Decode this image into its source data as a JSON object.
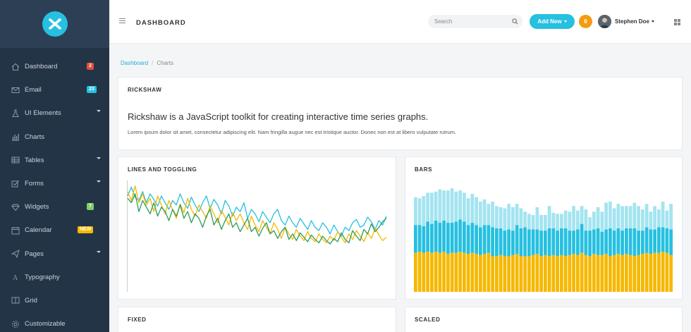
{
  "topbar": {
    "title": "DASHBOARD",
    "search_placeholder": "Search",
    "add_new_label": "Add New",
    "notification_count": "6",
    "user_name": "Stephen Doe"
  },
  "sidebar": {
    "items": [
      {
        "label": "Dashboard",
        "icon": "home-icon",
        "badge": "2",
        "badge_color": "#e74c3c"
      },
      {
        "label": "Email",
        "icon": "envelope-icon",
        "badge": "23",
        "badge_color": "#26c0e0"
      },
      {
        "label": "UI Elements",
        "icon": "flask-icon",
        "caret": true
      },
      {
        "label": "Charts",
        "icon": "bar-chart-icon"
      },
      {
        "label": "Tables",
        "icon": "table-icon",
        "caret": true
      },
      {
        "label": "Forms",
        "icon": "checkbox-icon",
        "caret": true
      },
      {
        "label": "Widgets",
        "icon": "diamond-icon",
        "badge": "7",
        "badge_color": "#7ed069"
      },
      {
        "label": "Calendar",
        "icon": "calendar-icon",
        "badge": "NEW",
        "badge_color": "#f6b800"
      },
      {
        "label": "Pages",
        "icon": "send-icon",
        "caret": true
      },
      {
        "label": "Typography",
        "icon": "font-icon"
      },
      {
        "label": "Grid",
        "icon": "columns-icon"
      },
      {
        "label": "Customizable",
        "icon": "settings-icon"
      }
    ]
  },
  "breadcrumb": {
    "home": "Dashboard",
    "current": "Charts"
  },
  "cards": {
    "rickshaw": {
      "title": "RICKSHAW",
      "lead": "Rickshaw is a JavaScript toolkit for creating interactive time series graphs.",
      "body": "Lorem ipsum dolor sit amet, consectetur adipiscing elit. Nam fringilla augue nec est tristique auctor. Donec non est at libero vulputate rutrum."
    },
    "lines": {
      "title": "LINES AND TOGGLING"
    },
    "bars": {
      "title": "BARS"
    },
    "fixed": {
      "title": "FIXED"
    },
    "scaled": {
      "title": "SCALED"
    }
  },
  "colors": {
    "accent": "#26c0e0",
    "yellow": "#f6b800",
    "green": "#2a9d5c",
    "light_blue": "#a3e4f0"
  },
  "chart_data": [
    {
      "type": "line",
      "title": "LINES AND TOGGLING",
      "ylim": [
        0,
        100
      ],
      "series": [
        {
          "color": "#26c0e0",
          "values": [
            86,
            94,
            85,
            82,
            90,
            80,
            88,
            83,
            77,
            86,
            80,
            74,
            82,
            78,
            88,
            80,
            75,
            85,
            78,
            72,
            80,
            86,
            75,
            83,
            78,
            70,
            82,
            77,
            68,
            76,
            72,
            80,
            66,
            74,
            70,
            63,
            72,
            67,
            62,
            70,
            74,
            64,
            60,
            68,
            62,
            58,
            66,
            61,
            56,
            64,
            58,
            55,
            62,
            58,
            52,
            60,
            54,
            50,
            58,
            55,
            62,
            65,
            58,
            60,
            67,
            63,
            56,
            64,
            60,
            68
          ]
        },
        {
          "color": "#f6b800",
          "values": [
            90,
            82,
            95,
            80,
            88,
            78,
            84,
            72,
            86,
            78,
            70,
            82,
            74,
            66,
            79,
            71,
            84,
            74,
            68,
            78,
            72,
            66,
            77,
            70,
            62,
            73,
            67,
            60,
            71,
            64,
            70,
            62,
            56,
            68,
            60,
            54,
            64,
            58,
            52,
            62,
            56,
            48,
            58,
            52,
            47,
            56,
            50,
            46,
            54,
            48,
            45,
            52,
            47,
            44,
            50,
            46,
            54,
            49,
            44,
            52,
            47,
            55,
            50,
            45,
            53,
            48,
            57,
            51,
            46,
            49
          ]
        },
        {
          "color": "#2a9d5c",
          "values": [
            84,
            80,
            88,
            72,
            82,
            76,
            70,
            80,
            68,
            76,
            72,
            64,
            74,
            68,
            78,
            66,
            72,
            62,
            70,
            66,
            58,
            68,
            74,
            60,
            66,
            56,
            64,
            70,
            58,
            62,
            54,
            60,
            66,
            54,
            58,
            50,
            57,
            62,
            52,
            55,
            48,
            54,
            58,
            47,
            52,
            46,
            53,
            49,
            45,
            51,
            47,
            44,
            50,
            46,
            43,
            48,
            45,
            53,
            47,
            44,
            55,
            50,
            46,
            56,
            52,
            61,
            54,
            58,
            63,
            66
          ]
        }
      ]
    },
    {
      "type": "bar",
      "title": "BARS",
      "stacked": true,
      "ylim": [
        0,
        100
      ],
      "series": [
        {
          "color": "#f6b800",
          "values": [
            35,
            36,
            35,
            36,
            35,
            36,
            35,
            36,
            34,
            35,
            35,
            36,
            35,
            34,
            35,
            34,
            33,
            34,
            35,
            32,
            32,
            33,
            32,
            32,
            33,
            34,
            32,
            32,
            32,
            33,
            34,
            32,
            33,
            32,
            33,
            32,
            33,
            32,
            33,
            34,
            33,
            35,
            33,
            32,
            34,
            33,
            33,
            34,
            32,
            33,
            34,
            33,
            34,
            33,
            32,
            33,
            34,
            35,
            34,
            35,
            35,
            36,
            35,
            33
          ]
        },
        {
          "color": "#26c0e0",
          "values": [
            25,
            24,
            24,
            27,
            26,
            28,
            27,
            28,
            28,
            27,
            28,
            29,
            28,
            26,
            27,
            26,
            25,
            26,
            25,
            26,
            25,
            24,
            23,
            24,
            22,
            26,
            25,
            26,
            24,
            23,
            22,
            23,
            22,
            25,
            24,
            23,
            24,
            25,
            22,
            21,
            23,
            26,
            22,
            23,
            22,
            24,
            21,
            22,
            25,
            22,
            23,
            22,
            23,
            24,
            25,
            22,
            21,
            23,
            22,
            21,
            23,
            22,
            22,
            23
          ]
        },
        {
          "color": "#a3e4f0",
          "values": [
            25,
            24,
            27,
            26,
            28,
            26,
            30,
            27,
            29,
            31,
            27,
            26,
            26,
            24,
            26,
            25,
            23,
            23,
            19,
            23,
            20,
            19,
            20,
            23,
            21,
            19,
            18,
            14,
            14,
            13,
            20,
            14,
            14,
            20,
            14,
            15,
            13,
            16,
            17,
            22,
            17,
            16,
            19,
            12,
            16,
            19,
            18,
            24,
            24,
            20,
            22,
            22,
            20,
            20,
            23,
            22,
            19,
            21,
            16,
            21,
            16,
            23,
            16,
            23
          ]
        }
      ]
    }
  ]
}
